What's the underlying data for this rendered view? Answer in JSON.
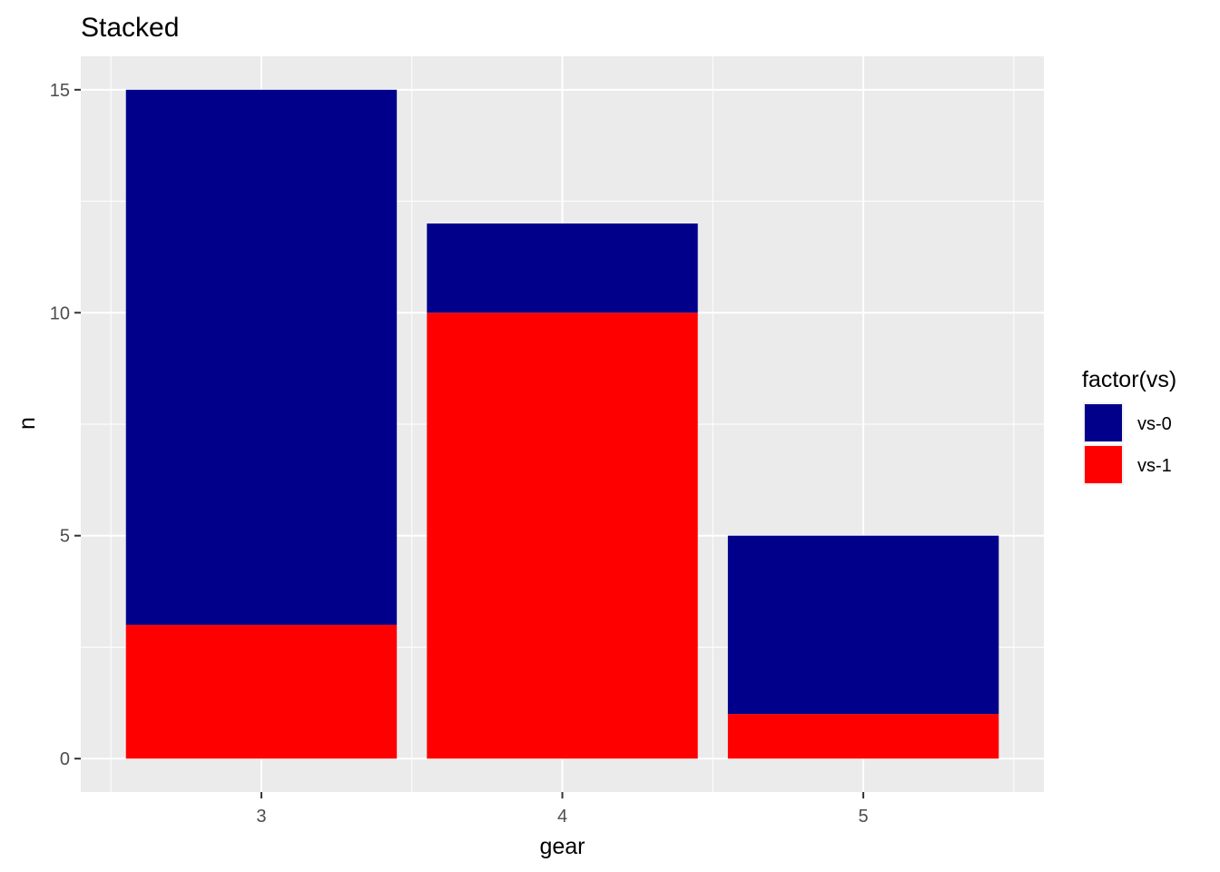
{
  "chart_data": {
    "type": "bar",
    "stacked": true,
    "title": "Stacked",
    "xlabel": "gear",
    "ylabel": "n",
    "categories": [
      "3",
      "4",
      "5"
    ],
    "series": [
      {
        "name": "vs-1",
        "values": [
          3,
          10,
          1
        ],
        "color": "#FF0000"
      },
      {
        "name": "vs-0",
        "values": [
          12,
          2,
          4
        ],
        "color": "#00008B"
      }
    ],
    "y_ticks": [
      0,
      5,
      10,
      15
    ],
    "y_tick_labels": [
      "0",
      "5",
      "10",
      "15"
    ],
    "ylim": [
      -0.75,
      15.75
    ],
    "grid": true,
    "legend": {
      "title": "factor(vs)",
      "position": "right",
      "entries": [
        {
          "label": "vs-0",
          "color": "#00008B"
        },
        {
          "label": "vs-1",
          "color": "#FF0000"
        }
      ]
    },
    "colors": {
      "panel_background": "#EBEBEB",
      "grid": "#FFFFFF"
    }
  }
}
